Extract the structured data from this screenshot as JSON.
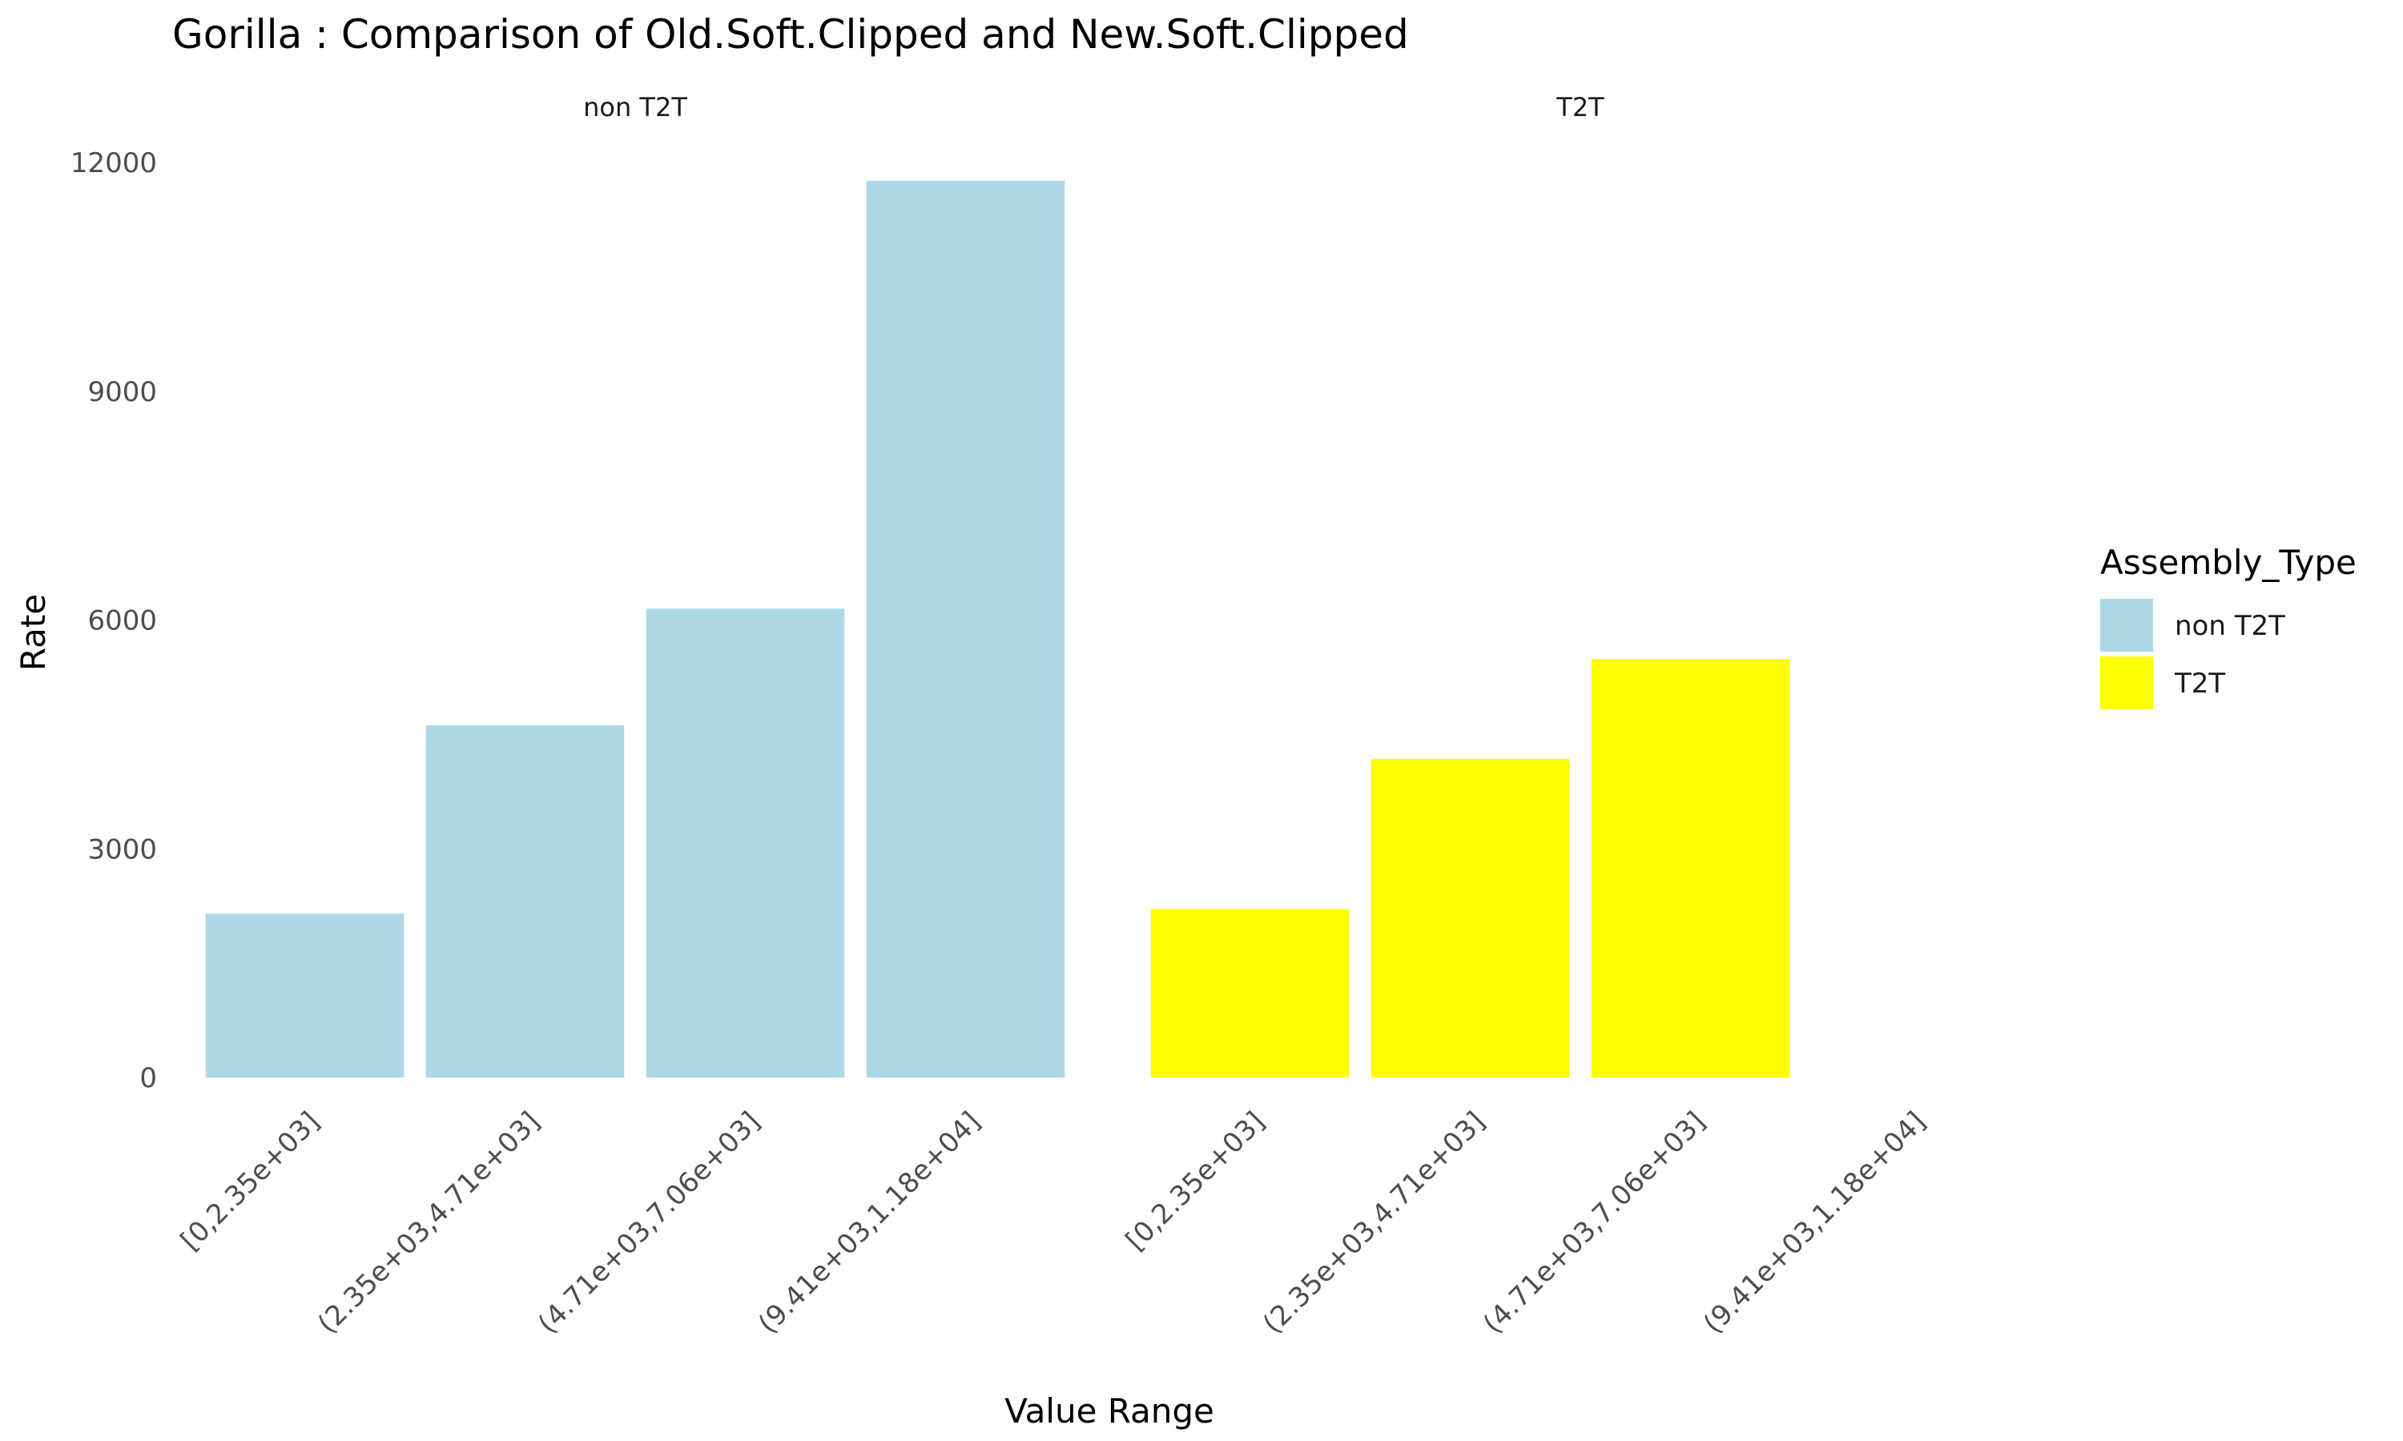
{
  "chart_data": {
    "type": "bar",
    "title": "Gorilla : Comparison of Old.Soft.Clipped and New.Soft.Clipped",
    "xlabel": "Value Range",
    "ylabel": "Rate",
    "ylim": [
      0,
      12000
    ],
    "yticks": [
      0,
      3000,
      6000,
      9000,
      12000
    ],
    "categories": [
      "[0,2.35e+03]",
      "(2.35e+03,4.71e+03]",
      "(4.71e+03,7.06e+03]",
      "(9.41e+03,1.18e+04]"
    ],
    "facets": [
      {
        "label": "non T2T",
        "color": "#add8e6",
        "values": [
          2150,
          4620,
          6150,
          11760
        ]
      },
      {
        "label": "T2T",
        "color": "#ffff00",
        "values": [
          2210,
          4180,
          5490,
          null
        ]
      }
    ],
    "legend": {
      "title": "Assembly_Type",
      "placement": "right",
      "entries": [
        {
          "label": "non T2T",
          "color": "#add8e6"
        },
        {
          "label": "T2T",
          "color": "#ffff00"
        }
      ]
    },
    "grid": false
  }
}
